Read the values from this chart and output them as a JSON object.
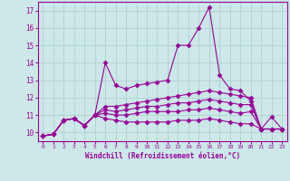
{
  "xlabel": "Windchill (Refroidissement éolien,°C)",
  "ylabel": "",
  "background_color": "#cce8e8",
  "line_color": "#990099",
  "grid_color": "#aacccc",
  "xlim": [
    -0.5,
    23.5
  ],
  "ylim": [
    9.5,
    17.5
  ],
  "xticks": [
    0,
    1,
    2,
    3,
    4,
    5,
    6,
    7,
    8,
    9,
    10,
    11,
    12,
    13,
    14,
    15,
    16,
    17,
    18,
    19,
    20,
    21,
    22,
    23
  ],
  "yticks": [
    10,
    11,
    12,
    13,
    14,
    15,
    16,
    17
  ],
  "series": [
    [
      9.8,
      9.9,
      10.7,
      10.8,
      10.4,
      11.0,
      14.0,
      12.7,
      12.5,
      12.7,
      12.8,
      12.9,
      13.0,
      15.0,
      15.0,
      16.0,
      17.2,
      13.3,
      12.5,
      12.4,
      11.8,
      10.2,
      10.9,
      10.2
    ],
    [
      9.8,
      9.9,
      10.7,
      10.8,
      10.4,
      11.0,
      11.5,
      11.5,
      11.6,
      11.7,
      11.8,
      11.9,
      12.0,
      12.1,
      12.2,
      12.3,
      12.4,
      12.3,
      12.2,
      12.1,
      12.0,
      10.2,
      10.2,
      10.2
    ],
    [
      9.8,
      9.9,
      10.7,
      10.8,
      10.4,
      11.0,
      11.3,
      11.2,
      11.3,
      11.4,
      11.5,
      11.5,
      11.6,
      11.7,
      11.7,
      11.8,
      11.9,
      11.8,
      11.7,
      11.6,
      11.6,
      10.2,
      10.2,
      10.2
    ],
    [
      9.8,
      9.9,
      10.7,
      10.8,
      10.4,
      11.0,
      11.1,
      11.0,
      11.0,
      11.1,
      11.2,
      11.2,
      11.2,
      11.2,
      11.3,
      11.3,
      11.4,
      11.3,
      11.2,
      11.1,
      11.2,
      10.2,
      10.2,
      10.2
    ],
    [
      9.8,
      9.9,
      10.7,
      10.8,
      10.4,
      11.0,
      10.8,
      10.7,
      10.6,
      10.6,
      10.6,
      10.6,
      10.6,
      10.7,
      10.7,
      10.7,
      10.8,
      10.7,
      10.6,
      10.5,
      10.5,
      10.2,
      10.2,
      10.2
    ]
  ],
  "marker": "D",
  "markersize": 2.5,
  "linewidth": 0.8
}
